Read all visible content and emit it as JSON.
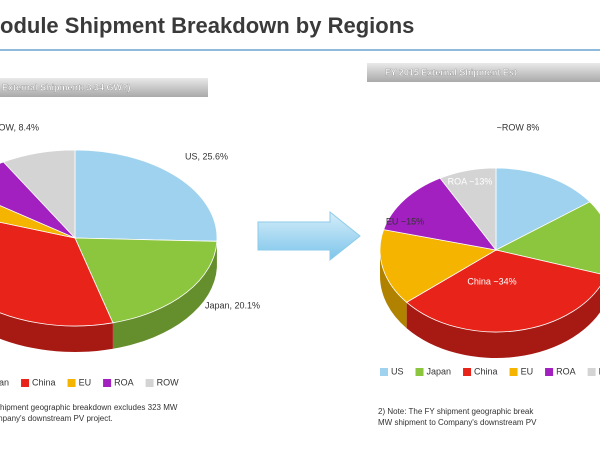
{
  "slide": {
    "title": "odule Shipment Breakdown by Regions"
  },
  "chart_data": [
    {
      "type": "pie",
      "title": "External Shipment: 3.34 GW?)",
      "categories": [
        "US",
        "Japan",
        "China",
        "EU",
        "ROA",
        "ROW"
      ],
      "values": [
        25.6,
        20.1,
        34.5,
        4.5,
        6.9,
        8.4
      ],
      "value_labels": [
        "US, 25.6%",
        "Japan, 20.1%",
        null,
        null,
        null,
        "ROW, 8.4%"
      ],
      "colors": [
        "#9ed2ee",
        "#8cc63f",
        "#e8231a",
        "#f5b400",
        "#a21fc0",
        "#d4d4d4"
      ],
      "notes": [
        "shipment  geographic breakdown excludes 323 MW",
        "mpany's downstream PV project."
      ]
    },
    {
      "type": "pie",
      "title": "FY 2015 External Shipment Est",
      "categories": [
        "US",
        "Japan",
        "China",
        "EU",
        "ROA",
        "ROW"
      ],
      "values": [
        15,
        15,
        34,
        15,
        13,
        8
      ],
      "value_labels": [
        null,
        null,
        "China ~34%",
        "EU ~15%",
        "ROA ~13%",
        "~ROW 8%"
      ],
      "colors": [
        "#9ed2ee",
        "#8cc63f",
        "#e8231a",
        "#f5b400",
        "#a21fc0",
        "#d4d4d4"
      ],
      "notes": [
        "2) Note: The FY shipment  geographic break",
        "MW shipment to Company's downstream PV"
      ]
    }
  ]
}
